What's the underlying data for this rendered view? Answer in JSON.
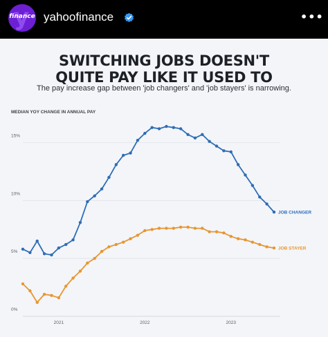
{
  "header": {
    "avatar_text": "finance",
    "account_name": "yahoofinance",
    "verified_icon": "verified-badge-icon",
    "more_icon": "more-dots-icon",
    "more_symbol": "•••"
  },
  "post": {
    "title_line1": "SWITCHING JOBS DOESN'T",
    "title_line2": "QUITE PAY LIKE IT USED TO",
    "subtitle": "The pay increase gap between 'job changers' and 'job stayers' is narrowing."
  },
  "chart_data": {
    "type": "line",
    "title": "SWITCHING JOBS DOESN'T QUITE PAY LIKE IT USED TO",
    "subtitle": "The pay increase gap between 'job changers' and 'job stayers' is narrowing.",
    "ylabel": "MEDIAN YOY CHANGE IN ANNUAL PAY",
    "xlabel": "",
    "ylim": [
      0,
      17
    ],
    "yticks": [
      0,
      5,
      10,
      15
    ],
    "ytick_labels": [
      "0%",
      "5%",
      "10%",
      "15%"
    ],
    "xtick_labels": [
      "2021",
      "2022",
      "2023"
    ],
    "x_start": "2020-08",
    "grid": true,
    "colors": {
      "job_changer": "#2f6db5",
      "job_stayer": "#e8962f"
    },
    "series": [
      {
        "name": "JOB CHANGER",
        "values": [
          5.8,
          5.5,
          6.5,
          5.4,
          5.3,
          5.9,
          6.2,
          6.6,
          8.1,
          9.9,
          10.4,
          11.0,
          12.0,
          13.1,
          13.9,
          14.1,
          15.2,
          15.8,
          16.3,
          16.2,
          16.4,
          16.3,
          16.2,
          15.7,
          15.4,
          15.7,
          15.1,
          14.7,
          14.3,
          14.2,
          13.1,
          12.2,
          11.3,
          10.3,
          9.7,
          9.0
        ]
      },
      {
        "name": "JOB STAYER",
        "values": [
          2.8,
          2.2,
          1.2,
          1.9,
          1.8,
          1.6,
          2.6,
          3.3,
          3.9,
          4.6,
          5.0,
          5.6,
          6.0,
          6.2,
          6.4,
          6.7,
          7.0,
          7.4,
          7.5,
          7.6,
          7.6,
          7.6,
          7.7,
          7.7,
          7.6,
          7.6,
          7.3,
          7.3,
          7.2,
          6.9,
          6.7,
          6.6,
          6.4,
          6.2,
          6.0,
          5.9
        ]
      }
    ]
  }
}
